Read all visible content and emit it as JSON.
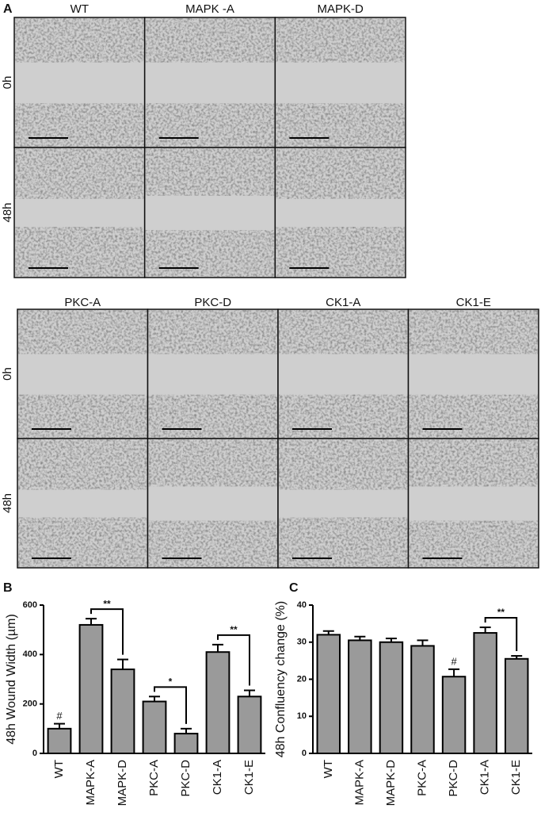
{
  "figure_a": {
    "label": "A",
    "top": {
      "columns": [
        "WT",
        "MAPK -A",
        "MAPK-D"
      ],
      "rows": [
        "0h",
        "48h"
      ]
    },
    "bottom": {
      "columns": [
        "PKC-A",
        "PKC-D",
        "CK1-A",
        "CK1-E"
      ],
      "rows": [
        "0h",
        "48h"
      ]
    }
  },
  "chart_data": [
    {
      "type": "bar",
      "label": "B",
      "y_label": "48h Wound Width (µm)",
      "categories": [
        "WT",
        "MAPK-A",
        "MAPK-D",
        "PKC-A",
        "PKC-D",
        "CK1-A",
        "CK1-E"
      ],
      "values": [
        100,
        520,
        340,
        210,
        80,
        410,
        230
      ],
      "errors": [
        20,
        25,
        40,
        20,
        20,
        30,
        25
      ],
      "markers": [
        "#",
        null,
        null,
        null,
        null,
        null,
        null
      ],
      "brackets": [
        {
          "text": "**",
          "from": "MAPK-A",
          "to": "MAPK-D"
        },
        {
          "text": "*",
          "from": "PKC-A",
          "to": "PKC-D"
        },
        {
          "text": "**",
          "from": "CK1-A",
          "to": "CK1-E"
        }
      ],
      "color": "#9a9a9a",
      "ylim": [
        0,
        600
      ],
      "yticks": [
        0,
        200,
        400,
        600
      ]
    },
    {
      "type": "bar",
      "label": "C",
      "y_label": "48h Confluency change (%)",
      "categories": [
        "WT",
        "MAPK-A",
        "MAPK-D",
        "PKC-A",
        "PKC-D",
        "CK1-A",
        "CK1-E"
      ],
      "values": [
        32,
        30.5,
        30,
        29,
        20.7,
        32.5,
        25.5
      ],
      "errors": [
        1,
        1,
        1,
        1.5,
        2,
        1.5,
        0.8
      ],
      "markers": [
        null,
        null,
        null,
        null,
        "#",
        null,
        null
      ],
      "brackets": [
        {
          "text": "**",
          "from": "CK1-A",
          "to": "CK1-E"
        }
      ],
      "color": "#9a9a9a",
      "ylim": [
        0,
        40
      ],
      "yticks": [
        0,
        10,
        20,
        30,
        40
      ]
    }
  ]
}
